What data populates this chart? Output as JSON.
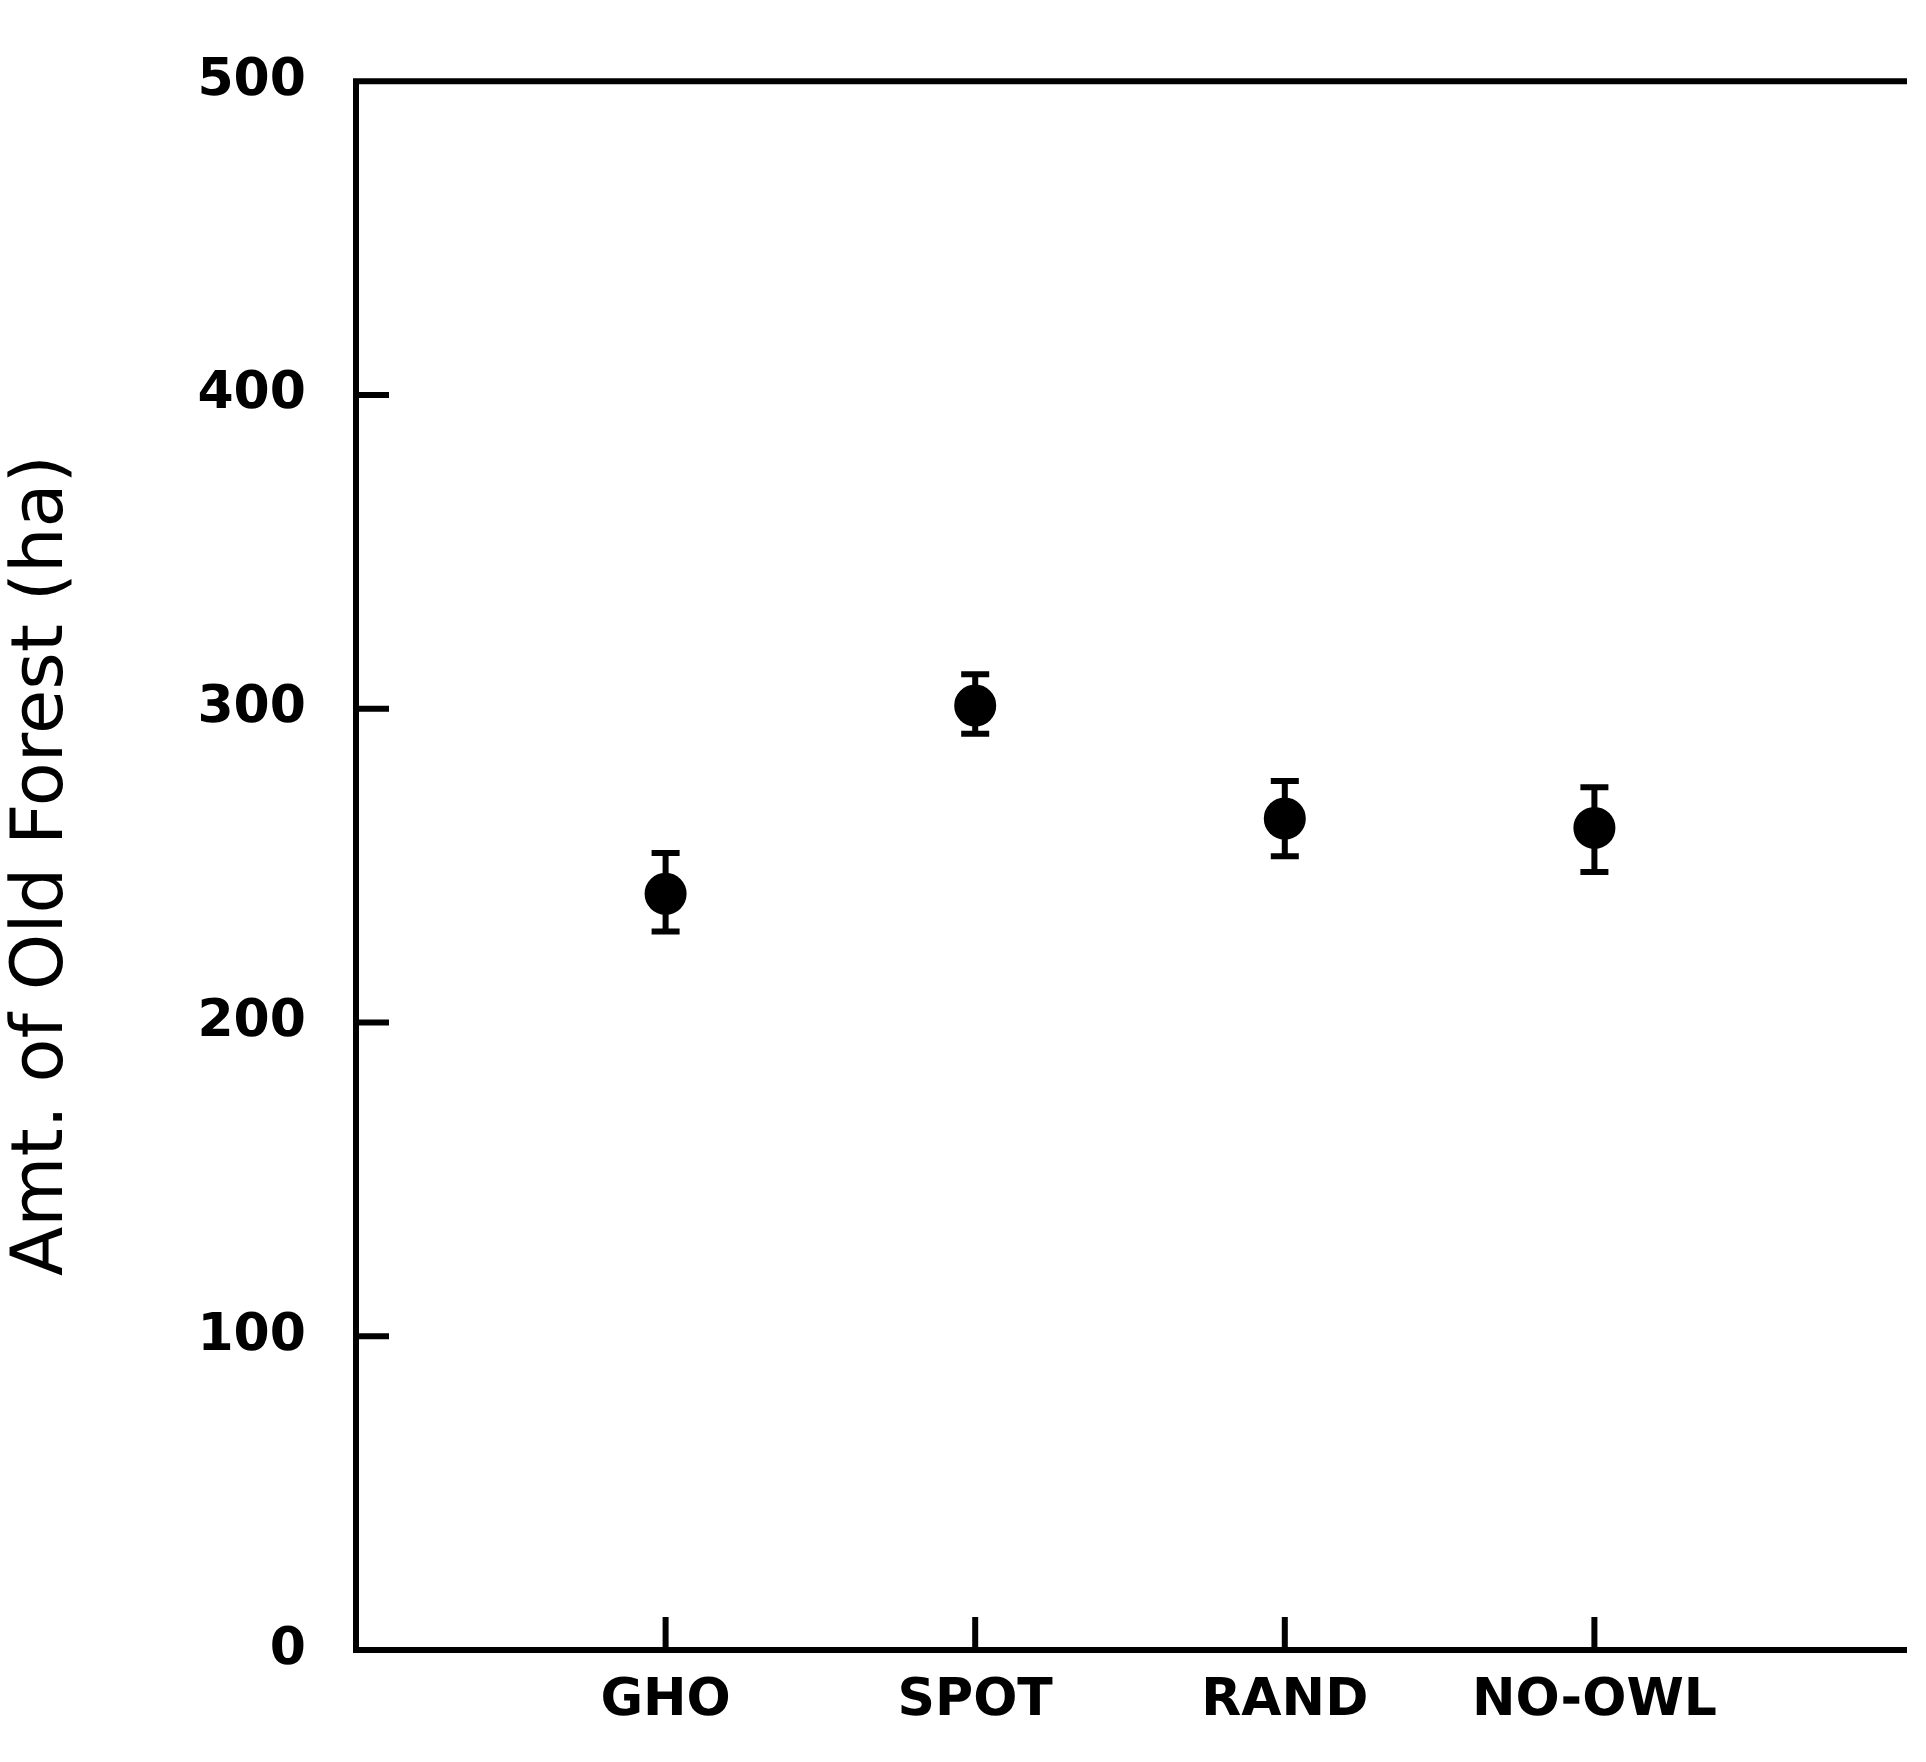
{
  "chart_data": {
    "type": "scatter",
    "ylabel": "Amt. of Old Forest (ha)",
    "categories": [
      "GHO",
      "SPOT",
      "RAND",
      "NO-OWL"
    ],
    "values": [
      241,
      301,
      265,
      262
    ],
    "errors": [
      [
        229,
        254
      ],
      [
        292,
        311
      ],
      [
        253,
        277
      ],
      [
        248,
        275
      ]
    ],
    "color": "#000000",
    "marker": "circle",
    "ylim": [
      0,
      500
    ],
    "yticks": [
      0,
      100,
      200,
      300,
      400,
      500
    ],
    "grid": false,
    "legend": false
  }
}
